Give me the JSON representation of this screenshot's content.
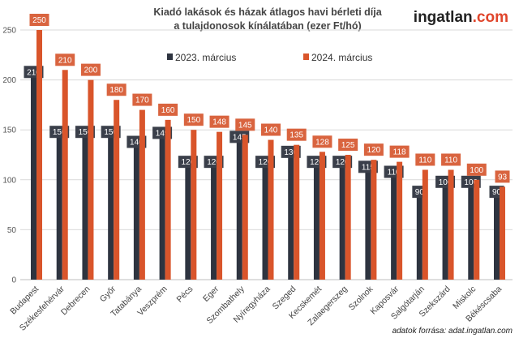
{
  "chart_data": {
    "type": "bar",
    "title": [
      "Kiadó lakások és házak átlagos havi bérleti díja",
      "a tulajdonosok kínálatában (ezer Ft/hó)"
    ],
    "categories": [
      "Budapest",
      "Székesfehérvár",
      "Debrecen",
      "Győr",
      "Tatabánya",
      "Veszprém",
      "Pécs",
      "Eger",
      "Szombathely",
      "Nyíregyháza",
      "Szeged",
      "Kecskemét",
      "Zalaegerszeg",
      "Szolnok",
      "Kaposvár",
      "Salgótarján",
      "Szekszárd",
      "Miskolc",
      "Békéscsaba"
    ],
    "series": [
      {
        "name": "2023. március",
        "color": "#2e3440",
        "values": [
          210,
          150,
          150,
          150,
          140,
          149,
          120,
          120,
          145,
          120,
          130,
          120,
          120,
          115,
          110,
          90,
          100,
          100,
          90
        ]
      },
      {
        "name": "2024. március",
        "color": "#d9552b",
        "values": [
          250,
          210,
          200,
          180,
          170,
          160,
          150,
          148,
          145,
          140,
          135,
          128,
          125,
          120,
          118,
          110,
          110,
          100,
          93
        ]
      }
    ],
    "yticks": [
      0,
      50,
      100,
      150,
      200,
      250
    ],
    "ylim": [
      0,
      250
    ],
    "grid": true,
    "legend": "top-center",
    "xlabel": "",
    "ylabel": ""
  },
  "logo": {
    "main": "ingatlan",
    "suffix": ".com"
  },
  "source": "adatok forrása: adat.ingatlan.com"
}
